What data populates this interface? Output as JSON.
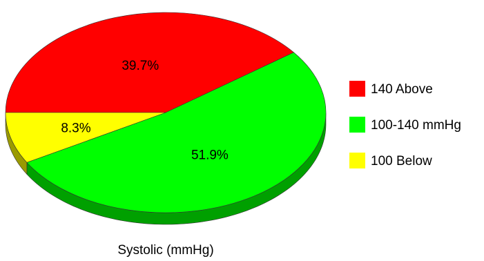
{
  "chart_data": {
    "type": "pie",
    "title": "",
    "caption": "Systolic (mmHg)",
    "slices": [
      {
        "name": "140 Above",
        "value": 39.7,
        "label": "39.7%",
        "color": "#ff0000",
        "side_color": "#990000"
      },
      {
        "name": "100-140 mmHg",
        "value": 51.9,
        "label": "51.9%",
        "color": "#00ff00",
        "side_color": "#00a000"
      },
      {
        "name": "100 Below",
        "value": 8.3,
        "label": "8.3%",
        "color": "#ffff00",
        "side_color": "#9a9a00"
      }
    ],
    "legend_position": "right",
    "three_d": true
  }
}
